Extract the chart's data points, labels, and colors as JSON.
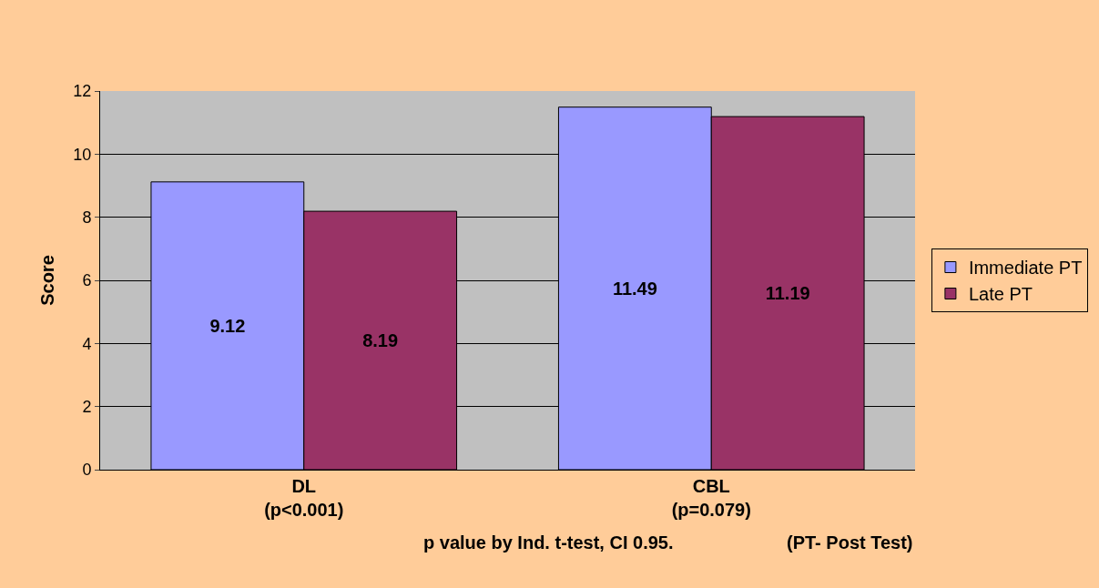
{
  "chart_data": {
    "type": "bar",
    "ylabel": "Score",
    "categories": [
      "DL\n(p<0.001)",
      "CBL\n(p=0.079)"
    ],
    "series": [
      {
        "name": "Immediate PT",
        "color": "#9999ff",
        "values": [
          9.12,
          11.49
        ]
      },
      {
        "name": "Late PT",
        "color": "#993366",
        "values": [
          8.19,
          11.19
        ]
      }
    ],
    "ylim": [
      0,
      12
    ],
    "yticks": [
      0,
      2,
      4,
      6,
      8,
      10,
      12
    ],
    "grid": "y",
    "legend": "right",
    "data_labels": true,
    "annotations": [
      "p value by Ind. t-test, CI 0.95.",
      "(PT- Post Test)"
    ]
  }
}
